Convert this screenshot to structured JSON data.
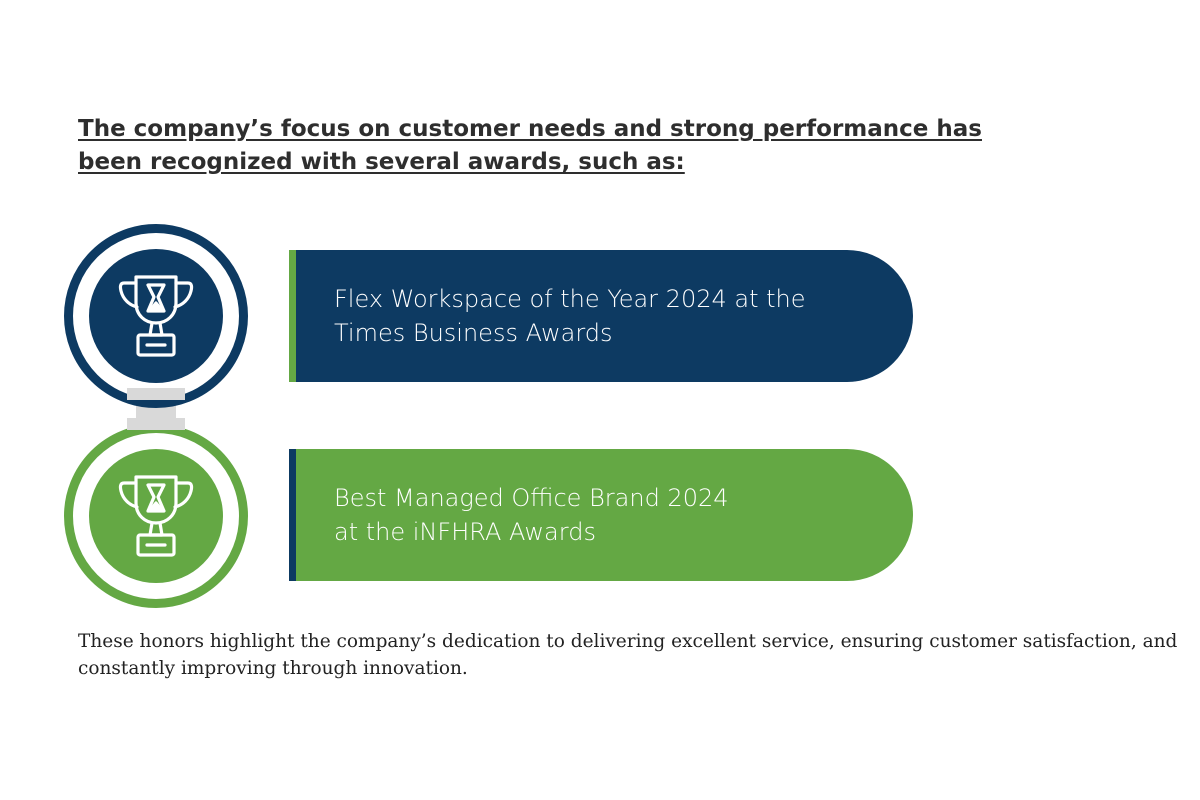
{
  "heading": {
    "line1": "The company’s focus on customer needs and strong performance has",
    "line2": "been recognized with several awards, such as:"
  },
  "awards": [
    {
      "line1": "Flex Workspace of the Year 2024 at the",
      "line2": "Times Business Awards",
      "icon": "trophy-icon",
      "color": "#0d3a62",
      "accent": "#64a844"
    },
    {
      "line1": "Best Managed Office Brand 2024",
      "line2": "at the iNFHRA Awards",
      "icon": "trophy-icon",
      "color": "#64a844",
      "accent": "#0d3a62"
    }
  ],
  "connector_color": "#d9d9d9",
  "footer": {
    "line1": "These honors highlight the company’s dedication to delivering excellent service, ensuring customer satisfaction, and",
    "line2": "constantly improving through innovation."
  }
}
